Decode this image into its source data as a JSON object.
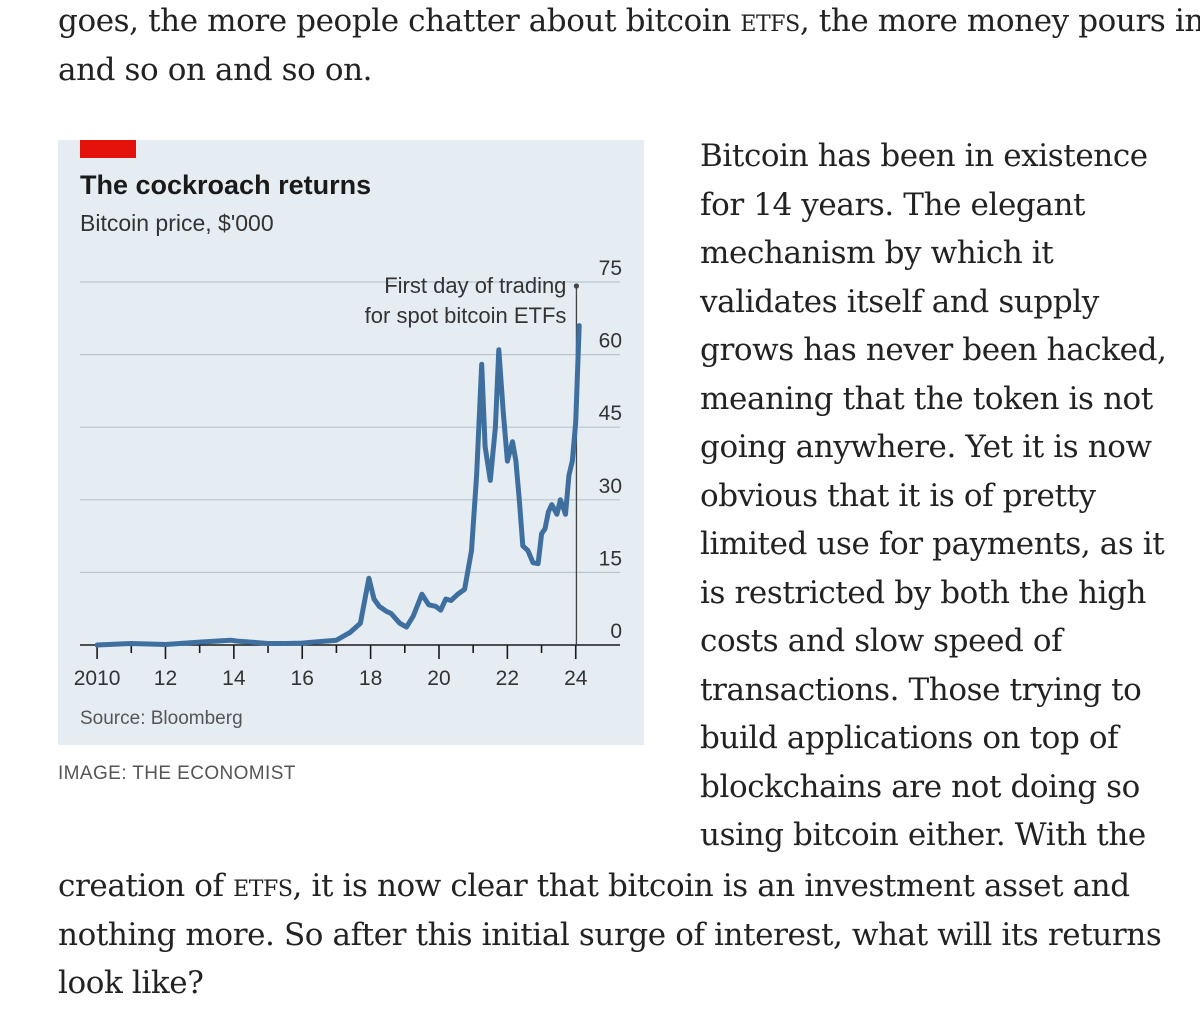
{
  "article": {
    "top_para": {
      "lines": [
        [
          "goes, the more people chatter about bitcoin ",
          "ETFs",
          ", the more money pours in"
        ],
        [
          "and so on and so on."
        ]
      ]
    },
    "side_para": {
      "lines": [
        "Bitcoin has been in existence",
        "for 14 years. The elegant",
        "mechanism by which it",
        "validates itself and supply",
        "grows has never been hacked,",
        "meaning that the token is not",
        "going anywhere. Yet it is now",
        "obvious that it is of pretty",
        "limited use for payments, as it",
        "is restricted by both the high",
        "costs and slow speed of",
        "transactions. Those trying to",
        "build applications on top of",
        "blockchains are not doing so",
        "using bitcoin either. With the"
      ]
    },
    "bottom_para": {
      "lines": [
        [
          "creation of ",
          "ETFs",
          ", it is now clear that bitcoin is an investment asset and"
        ],
        [
          "nothing more. So after this initial surge of interest, what will its returns"
        ],
        [
          "look like?"
        ]
      ]
    }
  },
  "figure": {
    "caption": "IMAGE: THE ECONOMIST",
    "colors": {
      "background": "#e5edf3",
      "line": "#3f6f9f",
      "tag": "#e3120b",
      "gridline": "#b9c4cd"
    }
  },
  "chart_data": {
    "type": "line",
    "title": "The cockroach returns",
    "subtitle": "Bitcoin price, $'000",
    "source": "Source: Bloomberg",
    "xlim": [
      2009.5,
      2024.3
    ],
    "ylim": [
      0,
      75
    ],
    "yticks": [
      0,
      15,
      30,
      45,
      60,
      75
    ],
    "ytick_labels": [
      "0",
      "15",
      "30",
      "45",
      "60",
      "75"
    ],
    "ytick_side": "right",
    "xtick_labels": [
      {
        "x": 2010,
        "label": "2010"
      },
      {
        "x": 2012,
        "label": "12"
      },
      {
        "x": 2014,
        "label": "14"
      },
      {
        "x": 2016,
        "label": "16"
      },
      {
        "x": 2018,
        "label": "18"
      },
      {
        "x": 2020,
        "label": "20"
      },
      {
        "x": 2022,
        "label": "22"
      },
      {
        "x": 2024,
        "label": "24"
      }
    ],
    "grid": true,
    "annotation": {
      "x": 2024.02,
      "lines": [
        "First day of trading",
        "for spot bitcoin ETFs"
      ]
    },
    "series": [
      {
        "x": [
          2010.0,
          2011.0,
          2012.0,
          2013.0,
          2013.9,
          2014.1,
          2014.5,
          2015.0,
          2015.5,
          2016.0,
          2016.5,
          2017.0,
          2017.4,
          2017.7,
          2017.95,
          2018.1,
          2018.25,
          2018.45,
          2018.6,
          2018.85,
          2019.05,
          2019.25,
          2019.5,
          2019.7,
          2019.9,
          2020.05,
          2020.2,
          2020.35,
          2020.55,
          2020.75,
          2020.95,
          2021.1,
          2021.25,
          2021.35,
          2021.5,
          2021.65,
          2021.75,
          2021.88,
          2022.0,
          2022.15,
          2022.25,
          2022.35,
          2022.45,
          2022.6,
          2022.75,
          2022.9,
          2023.0,
          2023.1,
          2023.2,
          2023.3,
          2023.45,
          2023.55,
          2023.7,
          2023.8,
          2023.9,
          2024.0,
          2024.1
        ],
        "y": [
          0.0,
          0.3,
          0.1,
          0.6,
          1.0,
          0.8,
          0.6,
          0.3,
          0.3,
          0.4,
          0.7,
          1.0,
          2.6,
          4.5,
          13.8,
          9.5,
          8.0,
          7.0,
          6.5,
          4.5,
          3.7,
          6.0,
          10.5,
          8.3,
          8.0,
          7.2,
          9.5,
          9.2,
          10.5,
          11.5,
          19.5,
          35.0,
          58.0,
          41.0,
          34.0,
          45.0,
          61.0,
          48.0,
          38.0,
          42.0,
          38.0,
          30.0,
          20.5,
          19.5,
          17.0,
          16.8,
          23.0,
          24.0,
          27.5,
          29.0,
          27.0,
          30.0,
          27.0,
          35.0,
          38.0,
          46.0,
          66.0
        ]
      }
    ]
  }
}
